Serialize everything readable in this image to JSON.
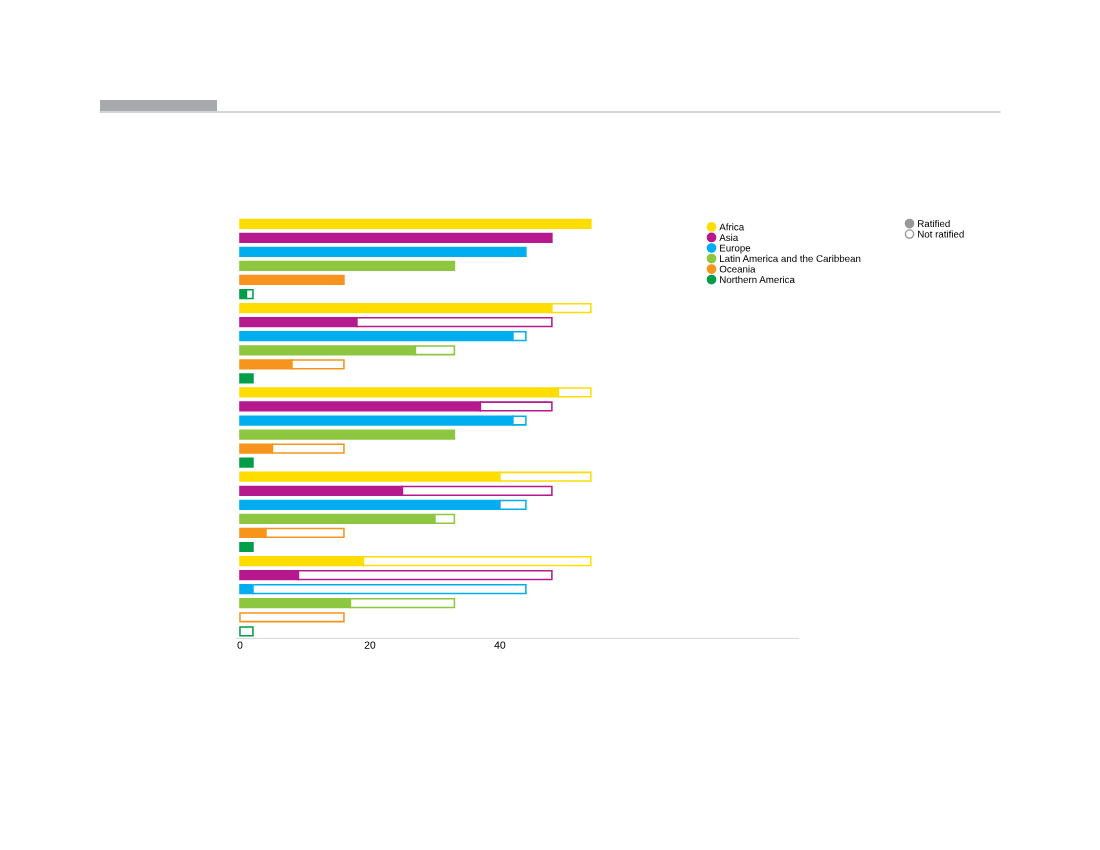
{
  "chart_data": {
    "type": "bar",
    "orientation": "horizontal",
    "stacked": true,
    "categories": [
      null,
      null,
      null,
      null,
      null,
      null,
      null,
      null,
      null,
      null,
      null,
      null,
      null,
      null,
      null,
      null,
      null,
      null,
      null,
      null,
      null,
      null,
      null,
      null,
      null,
      null,
      null,
      null,
      null,
      null
    ],
    "series": [
      {
        "name": "Ratified",
        "color": "#999999",
        "colors": [
          "#ffdd00",
          "#b5198d",
          "#00aeef",
          "#8dc63f",
          "#f7941d",
          "#009e49",
          "#ffdd00",
          "#b5198d",
          "#00aeef",
          "#8dc63f",
          "#f7941d",
          "#009e49",
          "#ffdd00",
          "#b5198d",
          "#00aeef",
          "#8dc63f",
          "#f7941d",
          "#009e49",
          "#ffdd00",
          "#b5198d",
          "#00aeef",
          "#8dc63f",
          "#f7941d",
          "#009e49",
          "#ffdd00",
          "#b5198d",
          "#00aeef",
          "#8dc63f",
          "#f7941d",
          "#009e49"
        ],
        "values": [
          54,
          48,
          44,
          33,
          16,
          1,
          48,
          18,
          42,
          27,
          8,
          2,
          49,
          37,
          42,
          33,
          5,
          2,
          40,
          25,
          40,
          30,
          4,
          2,
          19,
          9,
          2,
          17,
          0,
          0
        ]
      },
      {
        "name": "Not ratified",
        "color": "#ffffff",
        "colors": [
          "#ffdd00",
          "#b5198d",
          "#00aeef",
          "#8dc63f",
          "#f7941d",
          "#009e49",
          "#ffdd00",
          "#b5198d",
          "#00aeef",
          "#8dc63f",
          "#f7941d",
          "#009e49",
          "#ffdd00",
          "#b5198d",
          "#00aeef",
          "#8dc63f",
          "#f7941d",
          "#009e49",
          "#ffdd00",
          "#b5198d",
          "#00aeef",
          "#8dc63f",
          "#f7941d",
          "#009e49",
          "#ffdd00",
          "#b5198d",
          "#00aeef",
          "#8dc63f",
          "#f7941d",
          "#009e49"
        ],
        "values": [
          0,
          0,
          0,
          0,
          0,
          1,
          6,
          30,
          2,
          6,
          8,
          0,
          5,
          11,
          2,
          0,
          11,
          0,
          14,
          23,
          4,
          3,
          12,
          0,
          35,
          39,
          42,
          16,
          16,
          2
        ]
      }
    ],
    "annotations": [
      "Africa",
      "Asia",
      "Europe",
      "Latin America and the Caribbean",
      "Oceania",
      "Northern America"
    ],
    "xlim": [
      -0.5,
      86
    ],
    "xticks": [
      0,
      20,
      40
    ],
    "legend": "top right",
    "grid": false,
    "marker": "circle"
  }
}
